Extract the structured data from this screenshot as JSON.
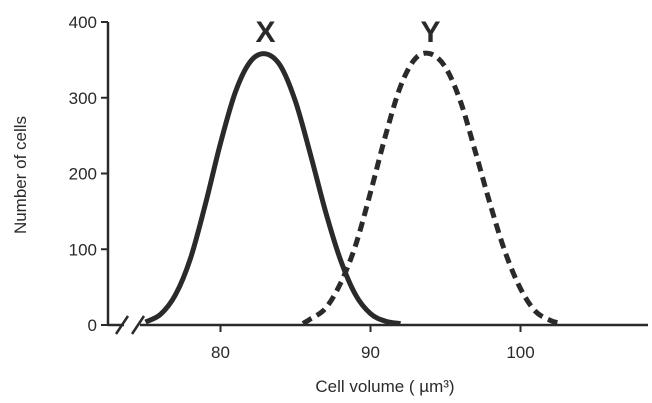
{
  "chart_data": {
    "type": "line",
    "xlabel": "Cell volume ( µm³)",
    "ylabel": "Number of cells",
    "xlim": [
      72.5,
      108.5
    ],
    "ylim": [
      0,
      400
    ],
    "x_ticks": [
      80,
      90,
      100
    ],
    "y_ticks": [
      0,
      100,
      200,
      300,
      400
    ],
    "x_axis_break": true,
    "grid": false,
    "series": [
      {
        "name": "X",
        "style": "solid",
        "color": "#2a2a2a",
        "x": [
          75,
          76,
          77,
          78,
          79,
          80,
          81,
          82,
          83,
          84,
          85,
          86,
          87,
          88,
          89,
          90,
          91,
          92
        ],
        "y": [
          4,
          14,
          40,
          88,
          160,
          240,
          308,
          348,
          358,
          342,
          295,
          225,
          150,
          86,
          40,
          15,
          5,
          2
        ]
      },
      {
        "name": "Y",
        "style": "dashed",
        "color": "#2a2a2a",
        "x": [
          85.5,
          86,
          87,
          88,
          89,
          90,
          91,
          92,
          93,
          94,
          95,
          96,
          97,
          98,
          99,
          100,
          101,
          102,
          102.5
        ],
        "y": [
          2,
          8,
          22,
          55,
          105,
          175,
          250,
          315,
          352,
          358,
          340,
          295,
          228,
          158,
          95,
          48,
          18,
          6,
          3
        ]
      }
    ]
  }
}
